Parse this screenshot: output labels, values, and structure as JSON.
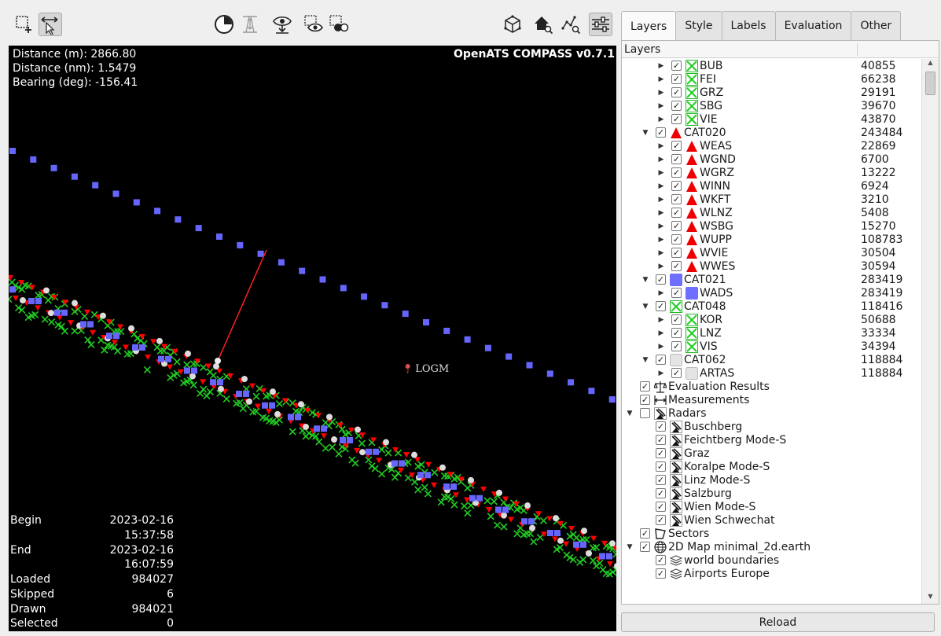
{
  "toolbar": {
    "left_tools": [
      {
        "name": "select-rectangle-tool",
        "icon": "rect-select-icon"
      },
      {
        "name": "navigate-tool",
        "icon": "pan-arrows-icon",
        "active": true
      }
    ],
    "center_tools": [
      {
        "name": "time-filter",
        "icon": "clock-icon"
      },
      {
        "name": "altitude-filter",
        "icon": "altitude-icon"
      },
      {
        "name": "show-selected",
        "icon": "eye-download-icon"
      },
      {
        "name": "view-point",
        "icon": "eye-select-icon"
      },
      {
        "name": "select-label",
        "icon": "circle-select-icon"
      }
    ],
    "right_tools": [
      {
        "name": "reset-view",
        "icon": "cube-icon"
      },
      {
        "name": "zoom-home",
        "icon": "home-search-icon"
      },
      {
        "name": "zoom-data",
        "icon": "scatter-search-icon"
      },
      {
        "name": "settings",
        "icon": "sliders-icon",
        "active": true
      }
    ]
  },
  "map": {
    "measurement": {
      "distance_m": "Distance (m): 2866.80",
      "distance_nm": "Distance (nm): 1.5479",
      "bearing": "Bearing (deg): -156.41"
    },
    "brand": "OpenATS COMPASS v0.7.1",
    "airport_label": "LOGM",
    "stats": [
      {
        "label": "Begin",
        "value": "2023-02-16 15:37:58"
      },
      {
        "label": "End",
        "value": "2023-02-16 16:07:59"
      },
      {
        "label": "Loaded",
        "value": "984027"
      },
      {
        "label": "Skipped",
        "value": "6"
      },
      {
        "label": "Drawn",
        "value": "984021"
      },
      {
        "label": "Selected",
        "value": "0"
      }
    ],
    "colors": {
      "background": "#000000",
      "cat020": "#ff0000",
      "cat021": "#6666ff",
      "cat048": "#22cc22",
      "cat062": "#dddddd",
      "measure_line": "#ff2020"
    }
  },
  "panel": {
    "tabs": [
      {
        "label": "Layers",
        "active": true
      },
      {
        "label": "Style"
      },
      {
        "label": "Labels"
      },
      {
        "label": "Evaluation"
      },
      {
        "label": "Other"
      }
    ],
    "tree_header": "Layers",
    "rows": [
      {
        "indent": 2,
        "arrow": "right",
        "icon": "green-x-icon",
        "label": "BUB",
        "count": "40855"
      },
      {
        "indent": 2,
        "arrow": "right",
        "icon": "green-x-icon",
        "label": "FEI",
        "count": "66238"
      },
      {
        "indent": 2,
        "arrow": "right",
        "icon": "green-x-icon",
        "label": "GRZ",
        "count": "29191"
      },
      {
        "indent": 2,
        "arrow": "right",
        "icon": "green-x-icon",
        "label": "SBG",
        "count": "39670"
      },
      {
        "indent": 2,
        "arrow": "right",
        "icon": "green-x-icon",
        "label": "VIE",
        "count": "43870"
      },
      {
        "indent": 1,
        "arrow": "down",
        "icon": "red-triangle-icon",
        "label": "CAT020",
        "count": "243484"
      },
      {
        "indent": 2,
        "arrow": "right",
        "icon": "red-triangle-icon",
        "label": "WEAS",
        "count": "22869"
      },
      {
        "indent": 2,
        "arrow": "right",
        "icon": "red-triangle-icon",
        "label": "WGND",
        "count": "6700"
      },
      {
        "indent": 2,
        "arrow": "right",
        "icon": "red-triangle-icon",
        "label": "WGRZ",
        "count": "13222"
      },
      {
        "indent": 2,
        "arrow": "right",
        "icon": "red-triangle-icon",
        "label": "WINN",
        "count": "6924"
      },
      {
        "indent": 2,
        "arrow": "right",
        "icon": "red-triangle-icon",
        "label": "WKFT",
        "count": "3210"
      },
      {
        "indent": 2,
        "arrow": "right",
        "icon": "red-triangle-icon",
        "label": "WLNZ",
        "count": "5408"
      },
      {
        "indent": 2,
        "arrow": "right",
        "icon": "red-triangle-icon",
        "label": "WSBG",
        "count": "15270"
      },
      {
        "indent": 2,
        "arrow": "right",
        "icon": "red-triangle-icon",
        "label": "WUPP",
        "count": "108783"
      },
      {
        "indent": 2,
        "arrow": "right",
        "icon": "red-triangle-icon",
        "label": "WVIE",
        "count": "30504"
      },
      {
        "indent": 2,
        "arrow": "right",
        "icon": "red-triangle-icon",
        "label": "WWES",
        "count": "30594"
      },
      {
        "indent": 1,
        "arrow": "down",
        "icon": "blue-square-icon",
        "label": "CAT021",
        "count": "283419"
      },
      {
        "indent": 2,
        "arrow": "right",
        "icon": "blue-square-icon",
        "label": "WADS",
        "count": "283419"
      },
      {
        "indent": 1,
        "arrow": "down",
        "icon": "green-x-icon",
        "label": "CAT048",
        "count": "118416"
      },
      {
        "indent": 2,
        "arrow": "right",
        "icon": "green-x-icon",
        "label": "KOR",
        "count": "50688"
      },
      {
        "indent": 2,
        "arrow": "right",
        "icon": "green-x-icon",
        "label": "LNZ",
        "count": "33334"
      },
      {
        "indent": 2,
        "arrow": "right",
        "icon": "green-x-icon",
        "label": "VIS",
        "count": "34394"
      },
      {
        "indent": 1,
        "arrow": "down",
        "icon": "grey-square-icon",
        "label": "CAT062",
        "count": "118884"
      },
      {
        "indent": 2,
        "arrow": "right",
        "icon": "grey-square-icon",
        "label": "ARTAS",
        "count": "118884"
      },
      {
        "indent": 0,
        "arrow": "",
        "icon": "scale-icon",
        "label": "Evaluation Results",
        "count": ""
      },
      {
        "indent": 0,
        "arrow": "",
        "icon": "measure-icon",
        "label": "Measurements",
        "count": ""
      },
      {
        "indent": 0,
        "arrow": "down",
        "icon": "radar-icon",
        "label": "Radars",
        "count": "",
        "unchecked": true
      },
      {
        "indent": 1,
        "arrow": "",
        "icon": "radar-icon",
        "label": "Buschberg",
        "count": ""
      },
      {
        "indent": 1,
        "arrow": "",
        "icon": "radar-icon",
        "label": "Feichtberg Mode-S",
        "count": ""
      },
      {
        "indent": 1,
        "arrow": "",
        "icon": "radar-icon",
        "label": "Graz",
        "count": ""
      },
      {
        "indent": 1,
        "arrow": "",
        "icon": "radar-icon",
        "label": "Koralpe Mode-S",
        "count": ""
      },
      {
        "indent": 1,
        "arrow": "",
        "icon": "radar-icon",
        "label": "Linz Mode-S",
        "count": ""
      },
      {
        "indent": 1,
        "arrow": "",
        "icon": "radar-icon",
        "label": "Salzburg",
        "count": ""
      },
      {
        "indent": 1,
        "arrow": "",
        "icon": "radar-icon",
        "label": "Wien Mode-S",
        "count": ""
      },
      {
        "indent": 1,
        "arrow": "",
        "icon": "radar-icon",
        "label": "Wien Schwechat",
        "count": ""
      },
      {
        "indent": 0,
        "arrow": "",
        "icon": "polygon-icon",
        "label": "Sectors",
        "count": ""
      },
      {
        "indent": 0,
        "arrow": "down",
        "icon": "globe-icon",
        "label": "2D Map minimal_2d.earth",
        "count": ""
      },
      {
        "indent": 1,
        "arrow": "",
        "icon": "layers-icon",
        "label": "world boundaries",
        "count": ""
      },
      {
        "indent": 1,
        "arrow": "",
        "icon": "layers-icon",
        "label": "Airports Europe",
        "count": ""
      }
    ],
    "reload_label": "Reload"
  }
}
